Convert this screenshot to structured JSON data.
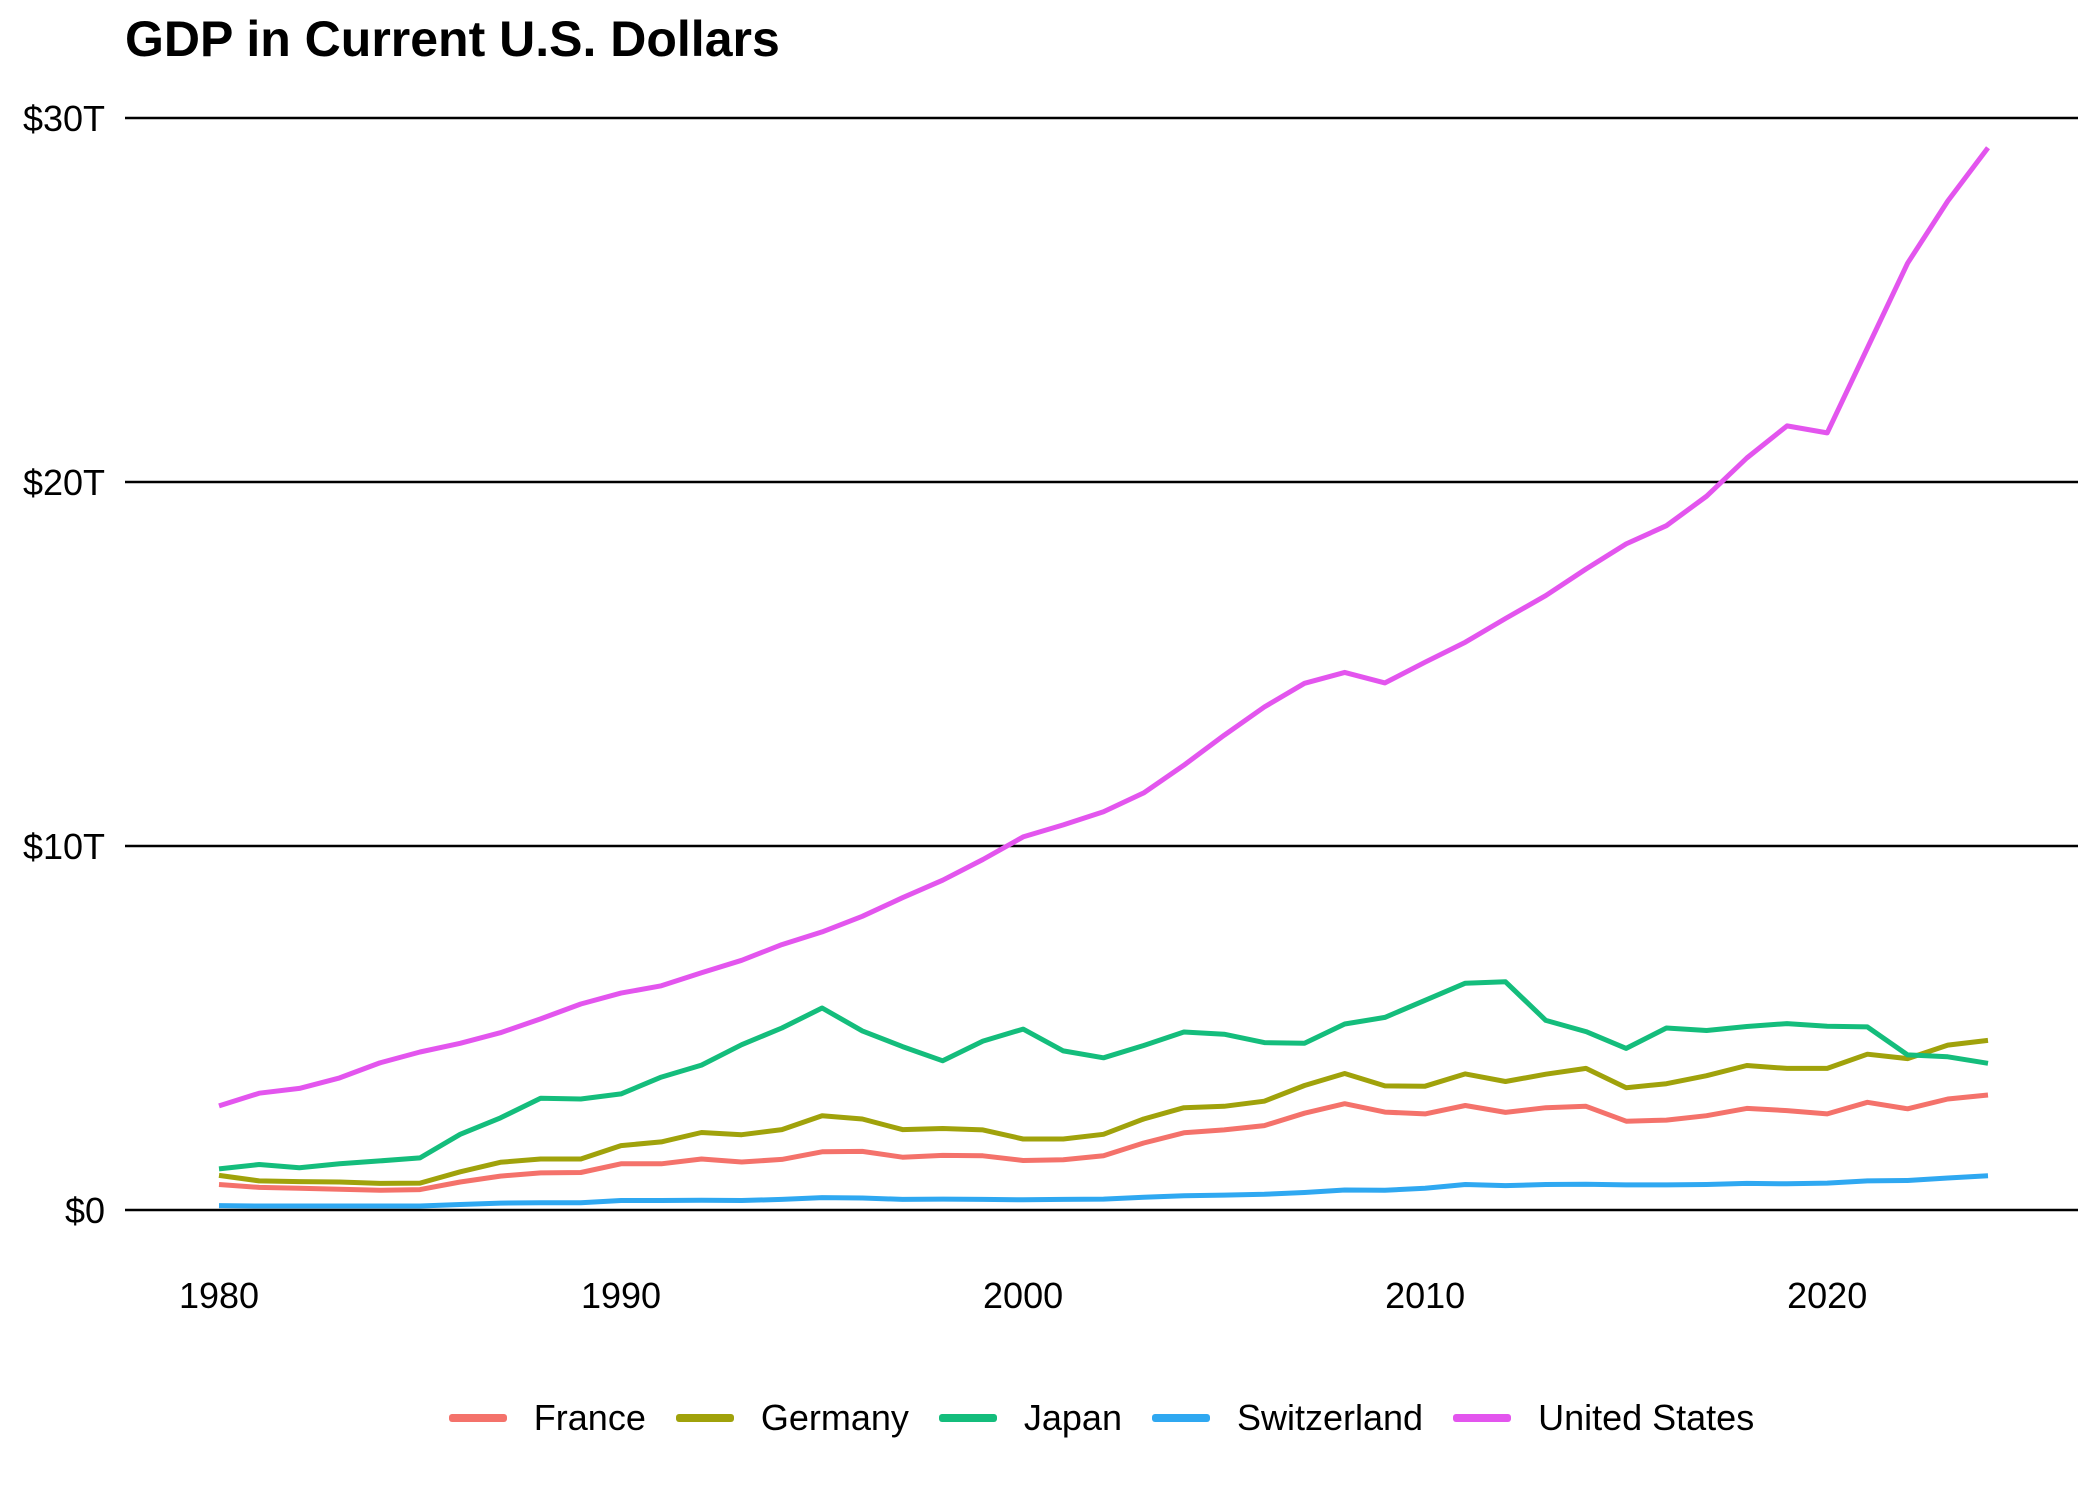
{
  "title": "GDP in Current U.S. Dollars",
  "chart_data": {
    "type": "line",
    "units": "trillions of current U.S. dollars",
    "x": [
      1980,
      1981,
      1982,
      1983,
      1984,
      1985,
      1986,
      1987,
      1988,
      1989,
      1990,
      1991,
      1992,
      1993,
      1994,
      1995,
      1996,
      1997,
      1998,
      1999,
      2000,
      2001,
      2002,
      2003,
      2004,
      2005,
      2006,
      2007,
      2008,
      2009,
      2010,
      2011,
      2012,
      2013,
      2014,
      2015,
      2016,
      2017,
      2018,
      2019,
      2020,
      2021,
      2022,
      2023,
      2024
    ],
    "series": [
      {
        "name": "France",
        "color": "#F4726B",
        "values": [
          0.7,
          0.62,
          0.6,
          0.57,
          0.54,
          0.56,
          0.77,
          0.93,
          1.02,
          1.03,
          1.27,
          1.27,
          1.4,
          1.32,
          1.39,
          1.6,
          1.61,
          1.45,
          1.5,
          1.49,
          1.36,
          1.38,
          1.49,
          1.84,
          2.12,
          2.2,
          2.32,
          2.66,
          2.92,
          2.69,
          2.64,
          2.87,
          2.68,
          2.81,
          2.85,
          2.44,
          2.47,
          2.59,
          2.79,
          2.73,
          2.64,
          2.96,
          2.78,
          3.05,
          3.16
        ]
      },
      {
        "name": "Germany",
        "color": "#A0A20B",
        "values": [
          0.95,
          0.8,
          0.78,
          0.77,
          0.73,
          0.74,
          1.05,
          1.31,
          1.4,
          1.4,
          1.77,
          1.87,
          2.13,
          2.07,
          2.21,
          2.59,
          2.5,
          2.21,
          2.24,
          2.2,
          1.95,
          1.95,
          2.08,
          2.5,
          2.81,
          2.85,
          2.99,
          3.42,
          3.75,
          3.41,
          3.4,
          3.74,
          3.53,
          3.73,
          3.89,
          3.36,
          3.47,
          3.69,
          3.97,
          3.89,
          3.89,
          4.28,
          4.16,
          4.53,
          4.66
        ]
      },
      {
        "name": "Japan",
        "color": "#14BD7C",
        "values": [
          1.13,
          1.25,
          1.16,
          1.27,
          1.35,
          1.43,
          2.08,
          2.53,
          3.07,
          3.05,
          3.19,
          3.65,
          3.98,
          4.54,
          5.0,
          5.55,
          4.92,
          4.49,
          4.1,
          4.64,
          4.97,
          4.37,
          4.18,
          4.52,
          4.89,
          4.83,
          4.6,
          4.58,
          5.11,
          5.29,
          5.76,
          6.23,
          6.27,
          5.21,
          4.9,
          4.44,
          5.0,
          4.93,
          5.04,
          5.12,
          5.05,
          5.03,
          4.26,
          4.21,
          4.03
        ]
      },
      {
        "name": "Switzerland",
        "color": "#2FA8F1",
        "values": [
          0.12,
          0.11,
          0.11,
          0.11,
          0.11,
          0.11,
          0.15,
          0.19,
          0.2,
          0.2,
          0.26,
          0.26,
          0.27,
          0.26,
          0.29,
          0.34,
          0.33,
          0.29,
          0.3,
          0.29,
          0.28,
          0.29,
          0.3,
          0.35,
          0.39,
          0.41,
          0.43,
          0.48,
          0.55,
          0.54,
          0.6,
          0.7,
          0.67,
          0.7,
          0.71,
          0.69,
          0.69,
          0.7,
          0.73,
          0.72,
          0.74,
          0.8,
          0.81,
          0.88,
          0.94
        ]
      },
      {
        "name": "United States",
        "color": "#E355EE",
        "values": [
          2.86,
          3.21,
          3.34,
          3.63,
          4.04,
          4.34,
          4.58,
          4.87,
          5.25,
          5.66,
          5.96,
          6.16,
          6.52,
          6.86,
          7.29,
          7.64,
          8.07,
          8.58,
          9.06,
          9.63,
          10.25,
          10.58,
          10.94,
          11.46,
          12.22,
          13.04,
          13.82,
          14.47,
          14.77,
          14.48,
          15.05,
          15.6,
          16.25,
          16.88,
          17.61,
          18.3,
          18.8,
          19.61,
          20.66,
          21.54,
          21.35,
          23.68,
          26.01,
          27.72,
          29.18
        ]
      }
    ],
    "ylim": [
      0,
      30
    ],
    "y_ticks": [
      {
        "value": 0,
        "label": "$0"
      },
      {
        "value": 10,
        "label": "$10T"
      },
      {
        "value": 20,
        "label": "$20T"
      },
      {
        "value": 30,
        "label": "$30T"
      }
    ],
    "x_ticks": [
      {
        "value": 1980,
        "label": "1980"
      },
      {
        "value": 1990,
        "label": "1990"
      },
      {
        "value": 2000,
        "label": "2000"
      },
      {
        "value": 2010,
        "label": "2010"
      },
      {
        "value": 2020,
        "label": "2020"
      }
    ],
    "grid": "horizontal-only",
    "legend_position": "bottom-center"
  }
}
